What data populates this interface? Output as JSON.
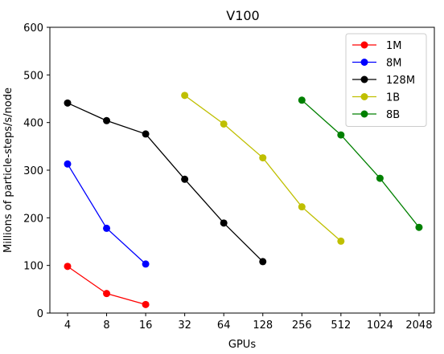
{
  "chart_data": {
    "type": "line",
    "title": "V100",
    "xlabel": "GPUs",
    "ylabel": "Millions of particle-steps/s/node",
    "x_scale": "log2",
    "x_ticks": [
      "4",
      "8",
      "16",
      "32",
      "64",
      "128",
      "256",
      "512",
      "1024",
      "2048"
    ],
    "ylim": [
      0,
      600
    ],
    "y_ticks": [
      "0",
      "100",
      "200",
      "300",
      "400",
      "500",
      "600"
    ],
    "grid": false,
    "legend_position": "top-right",
    "series": [
      {
        "name": "1M",
        "color": "#ff0000",
        "x": [
          4,
          8,
          16
        ],
        "y": [
          98,
          41,
          18
        ]
      },
      {
        "name": "8M",
        "color": "#0000ff",
        "x": [
          4,
          8,
          16
        ],
        "y": [
          313,
          178,
          103
        ]
      },
      {
        "name": "128M",
        "color": "#000000",
        "x": [
          4,
          8,
          16,
          32,
          64,
          128
        ],
        "y": [
          441,
          404,
          376,
          281,
          189,
          108
        ]
      },
      {
        "name": "1B",
        "color": "#bfbf00",
        "x": [
          32,
          64,
          128,
          256,
          512
        ],
        "y": [
          457,
          397,
          326,
          223,
          151
        ]
      },
      {
        "name": "8B",
        "color": "#008000",
        "x": [
          256,
          512,
          1024,
          2048
        ],
        "y": [
          447,
          374,
          283,
          180
        ]
      }
    ]
  }
}
